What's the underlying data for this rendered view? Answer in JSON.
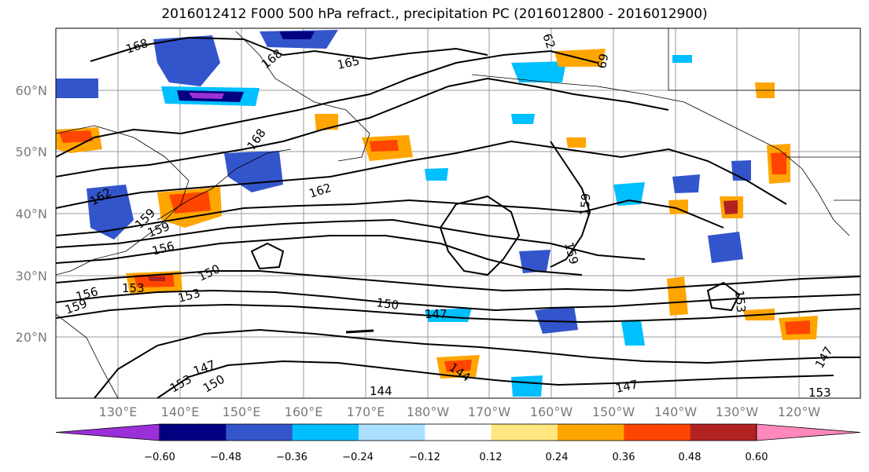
{
  "title": "2016012412 F000 500 hPa refract., precipitation PC (2016012800 - 2016012900)",
  "lat_labels": [
    "60°N",
    "50°N",
    "40°N",
    "30°N",
    "20°N"
  ],
  "lon_labels": [
    "130°E",
    "140°E",
    "150°E",
    "160°E",
    "170°E",
    "180°W",
    "170°W",
    "160°W",
    "150°W",
    "140°W",
    "130°W",
    "120°W"
  ],
  "colorbar": {
    "ticks": [
      "−0.60",
      "−0.48",
      "−0.36",
      "−0.24",
      "−0.12",
      "0.12",
      "0.24",
      "0.36",
      "0.48",
      "0.60"
    ],
    "colors": [
      "#9b30d9",
      "#000080",
      "#3355cc",
      "#00bfff",
      "#aadfff",
      "#ffffff",
      "#ffe680",
      "#ffa500",
      "#ff4500",
      "#b22222",
      "#ff88bb"
    ]
  },
  "contour_labels": [
    "168",
    "168",
    "165",
    "162",
    "168",
    "162",
    "159",
    "159",
    "156",
    "156",
    "159",
    "153",
    "150",
    "153",
    "150",
    "147",
    "147",
    "144",
    "144",
    "153",
    "147",
    "153",
    "150",
    "147",
    "62",
    "69",
    "159",
    "159",
    "153"
  ],
  "colors": {
    "negative": [
      "#9b30d9",
      "#000080",
      "#3355cc",
      "#00bfff",
      "#aadfff"
    ],
    "positive": [
      "#ffe680",
      "#ffa500",
      "#ff4500",
      "#b22222",
      "#ff88bb"
    ],
    "contour": "#000000",
    "grid": "#999999"
  }
}
